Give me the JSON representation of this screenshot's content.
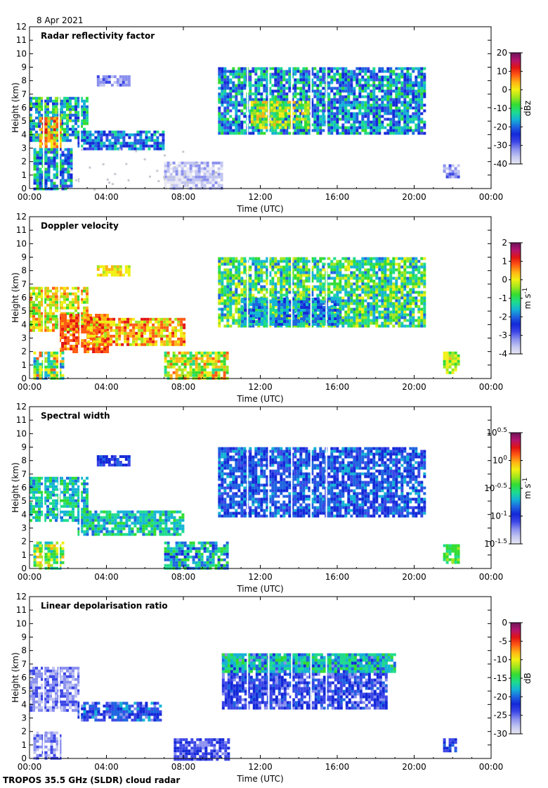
{
  "date_label": "8 Apr 2021",
  "footer": "TROPOS 35.5 GHz (SLDR) cloud radar",
  "colors": {
    "rainbow": [
      "#e8e8f4",
      "#c0c4f0",
      "#8a90ee",
      "#3c46e6",
      "#1428d8",
      "#1e64e0",
      "#14b4d4",
      "#1edc8c",
      "#32dc32",
      "#a0e61e",
      "#f0f014",
      "#ffb414",
      "#ff5a14",
      "#e11414",
      "#b4146e",
      "#6e145a"
    ],
    "grey": "#c8c8d2"
  },
  "chart_data": [
    {
      "id": "reflectivity",
      "type": "heatmap",
      "title": "Radar reflectivity factor",
      "xlabel": "Time (UTC)",
      "ylabel": "Height (km)",
      "xticks": [
        "00:00",
        "04:00",
        "08:00",
        "12:00",
        "16:00",
        "20:00",
        "00:00"
      ],
      "xlim_hours": [
        0,
        24
      ],
      "ylim": [
        0,
        12
      ],
      "yticks": [
        "0",
        "1",
        "2",
        "3",
        "4",
        "5",
        "6",
        "7",
        "8",
        "9",
        "10",
        "11",
        "12"
      ],
      "colorbar": {
        "label": "dBz",
        "range": [
          -40,
          20
        ],
        "ticks": [
          "20",
          "10",
          "0",
          "-10",
          "-20",
          "-30",
          "-40"
        ]
      }
    },
    {
      "id": "velocity",
      "type": "heatmap",
      "title": "Doppler velocity",
      "xlabel": "Time (UTC)",
      "ylabel": "Height (km)",
      "xticks": [
        "00:00",
        "04:00",
        "08:00",
        "12:00",
        "16:00",
        "20:00",
        "00:00"
      ],
      "xlim_hours": [
        0,
        24
      ],
      "ylim": [
        0,
        12
      ],
      "yticks": [
        "0",
        "1",
        "2",
        "3",
        "4",
        "5",
        "6",
        "7",
        "8",
        "9",
        "10",
        "11",
        "12"
      ],
      "colorbar": {
        "label": "m s",
        "label_sup": "-1",
        "range": [
          -4,
          2
        ],
        "ticks": [
          "2",
          "1",
          "0",
          "-1",
          "-2",
          "-3",
          "-4"
        ]
      }
    },
    {
      "id": "width",
      "type": "heatmap",
      "title": "Spectral width",
      "xlabel": "Time (UTC)",
      "ylabel": "Height (km)",
      "xticks": [
        "00:00",
        "04:00",
        "08:00",
        "12:00",
        "16:00",
        "20:00",
        "00:00"
      ],
      "xlim_hours": [
        0,
        24
      ],
      "ylim": [
        0,
        12
      ],
      "yticks": [
        "0",
        "1",
        "2",
        "3",
        "4",
        "5",
        "6",
        "7",
        "8",
        "9",
        "10",
        "11",
        "12"
      ],
      "colorbar": {
        "label": "m s",
        "label_sup": "-1",
        "range_log10": [
          -1.5,
          0.5
        ],
        "ticks": [
          {
            "base": "10",
            "exp": "0.5"
          },
          {
            "base": "10",
            "exp": "0"
          },
          {
            "base": "10",
            "exp": "-0.5"
          },
          {
            "base": "10",
            "exp": "-1"
          },
          {
            "base": "10",
            "exp": "-1.5"
          }
        ]
      }
    },
    {
      "id": "ldr",
      "type": "heatmap",
      "title": "Linear depolarisation ratio",
      "xlabel": "Time (UTC)",
      "ylabel": "Height (km)",
      "xticks": [
        "00:00",
        "04:00",
        "08:00",
        "12:00",
        "16:00",
        "20:00",
        "00:00"
      ],
      "xlim_hours": [
        0,
        24
      ],
      "ylim": [
        0,
        12
      ],
      "yticks": [
        "0",
        "1",
        "2",
        "3",
        "4",
        "5",
        "6",
        "7",
        "8",
        "9",
        "10",
        "11",
        "12"
      ],
      "colorbar": {
        "label": "dB",
        "range": [
          -30,
          0
        ],
        "ticks": [
          "0",
          "-5",
          "-10",
          "-15",
          "-20",
          "-25",
          "-30"
        ]
      }
    }
  ]
}
